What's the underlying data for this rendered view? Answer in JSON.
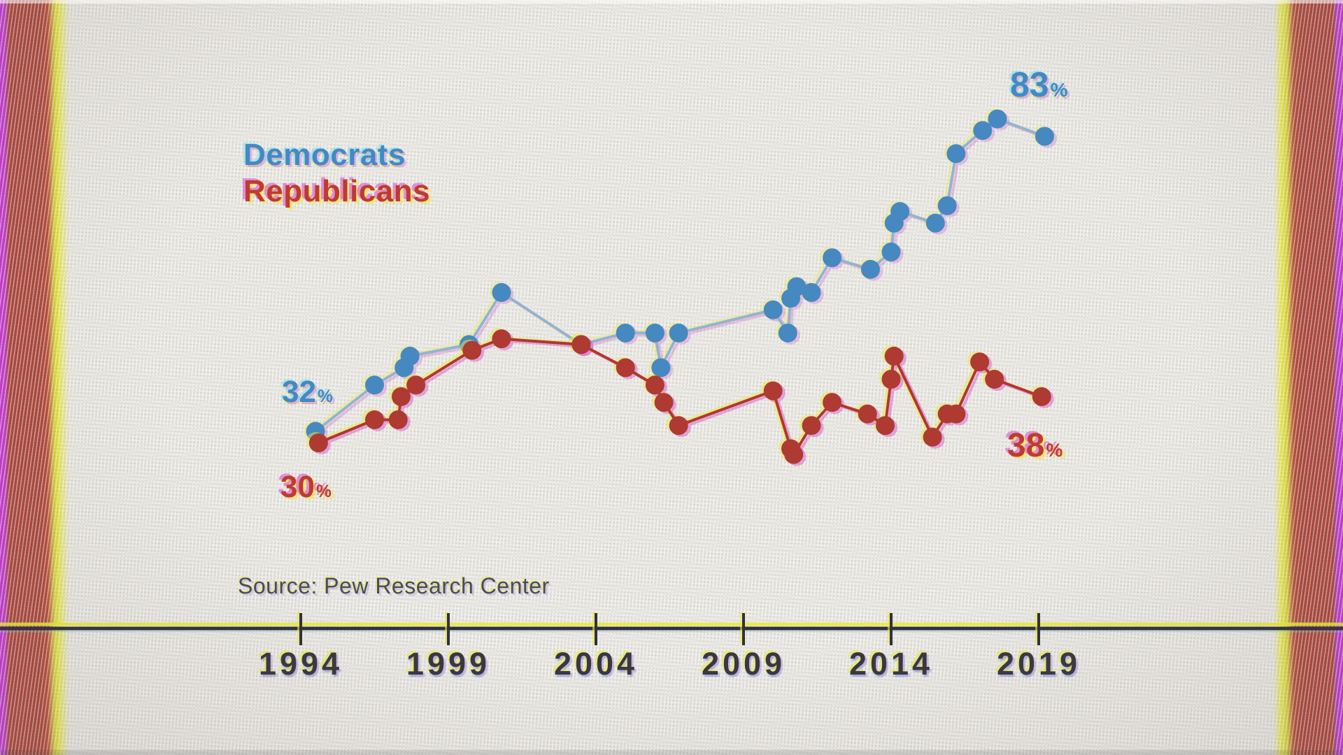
{
  "background": {
    "paper_color": "#ebe9e4"
  },
  "film_frame": {
    "left_band": {
      "edge_color": "#cb32d8",
      "body_color": "#ad4337",
      "fringe_color": "#e9ee42"
    },
    "right_band": {
      "edge_color": "#cb32d8",
      "body_color": "#ad4337",
      "fringe_color": "#e9ee42"
    }
  },
  "legend": {
    "items": [
      {
        "label": "Democrats",
        "color": "#4289c6"
      },
      {
        "label": "Republicans",
        "color": "#c03a31"
      }
    ]
  },
  "source": {
    "label": "Source: Pew Research Center"
  },
  "chart_data": {
    "type": "line",
    "title": "",
    "legend_position": "top-left",
    "grid": false,
    "x_axis": {
      "tick_labels": [
        "1994",
        "1999",
        "2004",
        "2009",
        "2014",
        "2019"
      ],
      "tick_years": [
        1994,
        1999,
        2004,
        2009,
        2014,
        2019
      ],
      "axis_color": "#332f3a",
      "fringe_color": "#e7eb3e"
    },
    "y_axis": {
      "visible": false,
      "unit": "%",
      "implied_range": [
        26,
        88
      ]
    },
    "series": [
      {
        "name": "Democrats",
        "dot_color": "#4689c0",
        "line_color": "#93b4cf",
        "start_label": {
          "value": "32",
          "unit": "%"
        },
        "end_label": {
          "value": "83",
          "unit": "%"
        },
        "points": [
          [
            1994.5,
            32
          ],
          [
            1996.5,
            40
          ],
          [
            1997.5,
            43
          ],
          [
            1997.7,
            45
          ],
          [
            1999.7,
            47
          ],
          [
            2000.8,
            56
          ],
          [
            2003.5,
            47
          ],
          [
            2005.0,
            49
          ],
          [
            2006.0,
            49
          ],
          [
            2006.2,
            43
          ],
          [
            2006.8,
            49
          ],
          [
            2010.0,
            53
          ],
          [
            2010.5,
            49
          ],
          [
            2010.6,
            55
          ],
          [
            2010.8,
            57
          ],
          [
            2011.3,
            56
          ],
          [
            2012.0,
            62
          ],
          [
            2013.3,
            60
          ],
          [
            2014.0,
            63
          ],
          [
            2014.1,
            68
          ],
          [
            2014.3,
            70
          ],
          [
            2015.5,
            68
          ],
          [
            2015.9,
            71
          ],
          [
            2016.2,
            80
          ],
          [
            2017.1,
            84
          ],
          [
            2017.6,
            86
          ],
          [
            2019.2,
            83
          ]
        ]
      },
      {
        "name": "Republicans",
        "dot_color": "#ae3a31",
        "line_color": "#b2362d",
        "start_label": {
          "value": "30",
          "unit": "%"
        },
        "end_label": {
          "value": "38",
          "unit": "%"
        },
        "points": [
          [
            1994.6,
            30
          ],
          [
            1996.5,
            34
          ],
          [
            1997.3,
            34
          ],
          [
            1997.4,
            38
          ],
          [
            1997.9,
            40
          ],
          [
            1999.8,
            46
          ],
          [
            2000.8,
            48
          ],
          [
            2003.5,
            47
          ],
          [
            2005.0,
            43
          ],
          [
            2006.0,
            40
          ],
          [
            2006.3,
            37
          ],
          [
            2006.8,
            33
          ],
          [
            2010.0,
            39
          ],
          [
            2010.6,
            29
          ],
          [
            2010.7,
            28
          ],
          [
            2011.3,
            33
          ],
          [
            2012.0,
            37
          ],
          [
            2013.2,
            35
          ],
          [
            2013.8,
            33
          ],
          [
            2014.0,
            41
          ],
          [
            2014.1,
            45
          ],
          [
            2015.4,
            31
          ],
          [
            2015.9,
            35
          ],
          [
            2016.2,
            35
          ],
          [
            2017.0,
            44
          ],
          [
            2017.5,
            41
          ],
          [
            2019.1,
            38
          ]
        ]
      }
    ]
  }
}
